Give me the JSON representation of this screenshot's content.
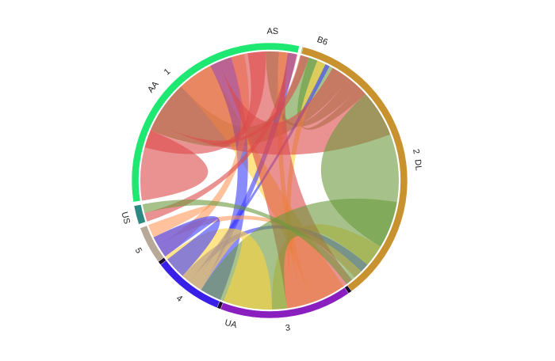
{
  "chart_data": {
    "type": "chord",
    "airlines": [
      {
        "name": "AA",
        "color": "#c0546a"
      },
      {
        "name": "AS",
        "color": "#9a3a6e"
      },
      {
        "name": "B6",
        "color": "#5fae33"
      },
      {
        "name": "DL",
        "color": "#c8922f"
      },
      {
        "name": "UA",
        "color": "#1c0a2e"
      },
      {
        "name": "US",
        "color": "#2a8a82"
      }
    ],
    "delays": [
      {
        "name": "1",
        "color": "#1ee872",
        "link_color": "#dc4a4a"
      },
      {
        "name": "2",
        "color": "#c8922f",
        "link_color": "#6a9a3c"
      },
      {
        "name": "3",
        "color": "#8a1fc0",
        "link_color": "#ffd23c"
      },
      {
        "name": "4",
        "color": "#3a1fe8",
        "link_color": "#3c3cff"
      },
      {
        "name": "5",
        "color": "#b8a898",
        "link_color": "#ff9a5a"
      }
    ],
    "matrix": [
      [
        12,
        12,
        8,
        5,
        3
      ],
      [
        4,
        3,
        2,
        2,
        0
      ],
      [
        2,
        2,
        2,
        1,
        0
      ],
      [
        20,
        26,
        5,
        2,
        2
      ],
      [
        16,
        20,
        11,
        5,
        3
      ],
      [
        2,
        2,
        0,
        0,
        0
      ]
    ]
  }
}
